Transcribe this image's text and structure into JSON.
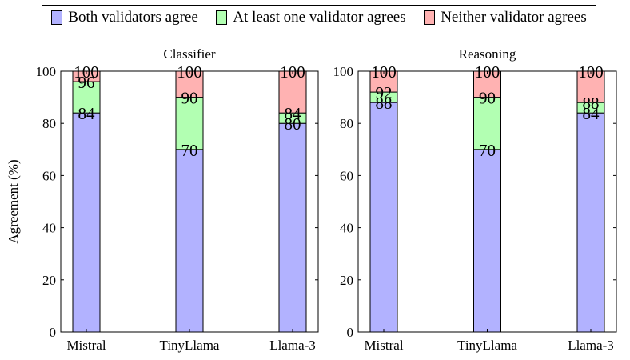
{
  "colors": {
    "both": "#b2b2ff",
    "one": "#b2ffb2",
    "neither": "#ffb2b2"
  },
  "legend": [
    {
      "key": "both",
      "label": "Both validators agree"
    },
    {
      "key": "one",
      "label": "At least one validator agrees"
    },
    {
      "key": "neither",
      "label": "Neither validator agrees"
    }
  ],
  "ylabel": "Agreement (%)",
  "chart_data": [
    {
      "type": "bar",
      "title": "Classifier",
      "categories": [
        "Mistral",
        "TinyLlama",
        "Llama-3"
      ],
      "series": [
        {
          "name": "Both validators agree",
          "key": "both",
          "values": [
            84,
            70,
            80
          ]
        },
        {
          "name": "At least one validator agrees",
          "key": "one",
          "values": [
            96,
            90,
            84
          ]
        },
        {
          "name": "Neither validator agrees",
          "key": "neither",
          "values": [
            100,
            100,
            100
          ]
        }
      ],
      "ylim": [
        0,
        100
      ],
      "yticks": [
        0,
        20,
        40,
        60,
        80,
        100
      ],
      "ylabel": "Agreement (%)"
    },
    {
      "type": "bar",
      "title": "Reasoning",
      "categories": [
        "Mistral",
        "TinyLlama",
        "Llama-3"
      ],
      "series": [
        {
          "name": "Both validators agree",
          "key": "both",
          "values": [
            88,
            70,
            84
          ]
        },
        {
          "name": "At least one validator agrees",
          "key": "one",
          "values": [
            92,
            90,
            88
          ]
        },
        {
          "name": "Neither validator agrees",
          "key": "neither",
          "values": [
            100,
            100,
            100
          ]
        }
      ],
      "ylim": [
        0,
        100
      ],
      "yticks": [
        0,
        20,
        40,
        60,
        80,
        100
      ],
      "ylabel": ""
    }
  ]
}
